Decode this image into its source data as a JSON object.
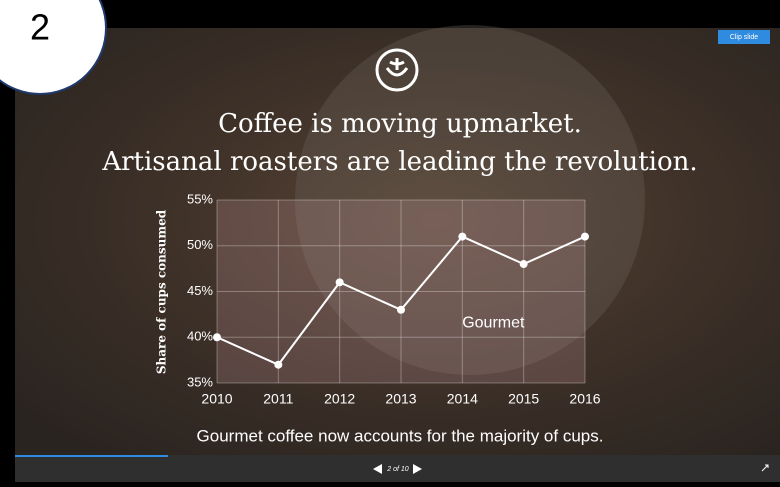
{
  "badge": "2",
  "clip_button": "Clip slide",
  "pager": "2 of 10",
  "chart_data": {
    "type": "line",
    "title": [
      "Coffee is moving upmarket.",
      "Artisanal roasters are leading the revolution."
    ],
    "caption": "Gourmet coffee now accounts for the majority of cups.",
    "y_label": "Share of cups consumed",
    "categories": [
      "2010",
      "2011",
      "2012",
      "2013",
      "2014",
      "2015",
      "2016"
    ],
    "series": [
      {
        "name": "Gourmet",
        "color": "#ffffff",
        "values": [
          40,
          37,
          46,
          43,
          51,
          48,
          51
        ]
      }
    ],
    "ylim": [
      35,
      55
    ],
    "yticks": [
      {
        "value": 35,
        "label": "35%"
      },
      {
        "value": 40,
        "label": "40%"
      },
      {
        "value": 45,
        "label": "45%"
      },
      {
        "value": 50,
        "label": "50%"
      },
      {
        "value": 55,
        "label": "55%"
      }
    ],
    "grid": true
  }
}
